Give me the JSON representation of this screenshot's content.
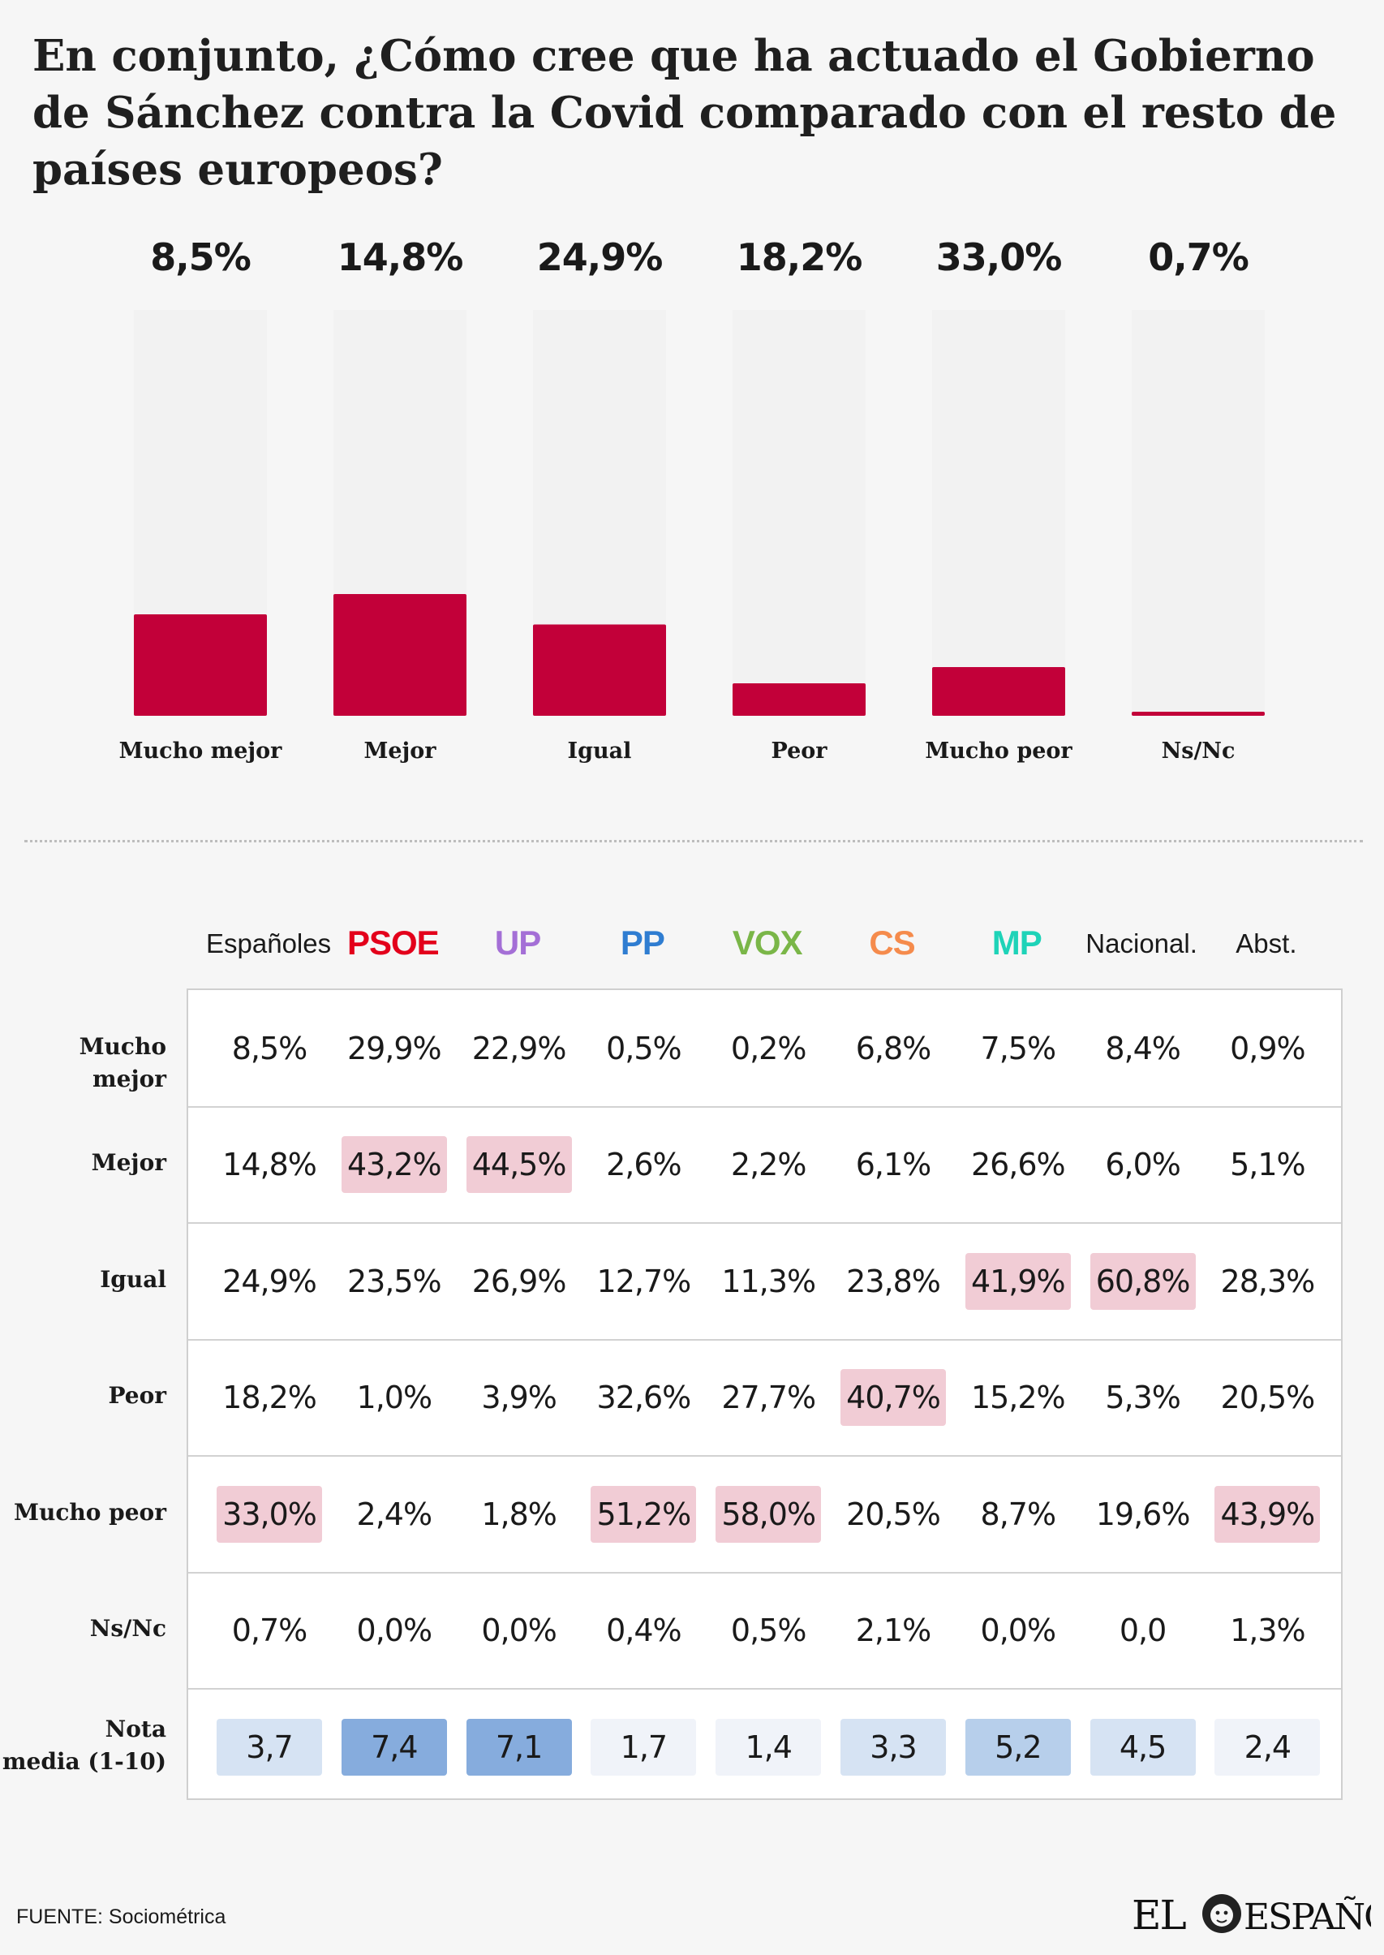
{
  "title": "En conjunto, ¿Cómo cree que ha actuado el Gobierno de Sánchez contra la Covid  comparado  con el resto de países europeos?",
  "chart_data": {
    "type": "bar",
    "categories": [
      "Mucho mejor",
      "Mejor",
      "Igual",
      "Peor",
      "Mucho peor",
      "Ns/Nc"
    ],
    "values": [
      8.5,
      14.8,
      24.9,
      18.2,
      33.0,
      0.7
    ],
    "value_labels": [
      "8,5%",
      "14,8%",
      "24,9%",
      "18,2%",
      "33,0%",
      "0,7%"
    ],
    "filled_fraction": [
      0.25,
      0.3,
      0.225,
      0.08,
      0.12,
      0.01
    ],
    "colors": {
      "bar": "#c20039",
      "track": "#f2f2f2"
    }
  },
  "table": {
    "columns": [
      {
        "label": "Españoles",
        "color": "#1a1a1a",
        "party": false
      },
      {
        "label": "PSOE",
        "color": "#e3001b",
        "party": true
      },
      {
        "label": "UP",
        "color": "#a46fd6",
        "party": true
      },
      {
        "label": "PP",
        "color": "#2f7dd1",
        "party": true
      },
      {
        "label": "VOX",
        "color": "#7ab648",
        "party": true
      },
      {
        "label": "CS",
        "color": "#f58b4c",
        "party": true
      },
      {
        "label": "MP",
        "color": "#1ed3b8",
        "party": true
      },
      {
        "label": "Nacional.",
        "color": "#1a1a1a",
        "party": false
      },
      {
        "label": "Abst.",
        "color": "#1a1a1a",
        "party": false
      }
    ],
    "rows": [
      {
        "label": "Mucho mejor",
        "cells": [
          "8,5%",
          "29,9%",
          "22,9%",
          "0,5%",
          "0,2%",
          "6,8%",
          "7,5%",
          "8,4%",
          "0,9%"
        ],
        "highlight": []
      },
      {
        "label": "Mejor",
        "cells": [
          "14,8%",
          "43,2%",
          "44,5%",
          "2,6%",
          "2,2%",
          "6,1%",
          "26,6%",
          "6,0%",
          "5,1%"
        ],
        "highlight": [
          1,
          2
        ]
      },
      {
        "label": "Igual",
        "cells": [
          "24,9%",
          "23,5%",
          "26,9%",
          "12,7%",
          "11,3%",
          "23,8%",
          "41,9%",
          "60,8%",
          "28,3%"
        ],
        "highlight": [
          6,
          7
        ]
      },
      {
        "label": "Peor",
        "cells": [
          "18,2%",
          "1,0%",
          "3,9%",
          "32,6%",
          "27,7%",
          "40,7%",
          "15,2%",
          "5,3%",
          "20,5%"
        ],
        "highlight": [
          5
        ]
      },
      {
        "label": "Mucho peor",
        "cells": [
          "33,0%",
          "2,4%",
          "1,8%",
          "51,2%",
          "58,0%",
          "20,5%",
          "8,7%",
          "19,6%",
          "43,9%"
        ],
        "highlight": [
          0,
          3,
          4,
          8
        ]
      },
      {
        "label": "Ns/Nc",
        "cells": [
          "0,7%",
          "0,0%",
          "0,0%",
          "0,4%",
          "0,5%",
          "2,1%",
          "0,0%",
          "0,0",
          "1,3%"
        ],
        "highlight": []
      }
    ],
    "mean_row": {
      "label_line1": "Nota",
      "label_line2": "media (1-10)",
      "cells": [
        "3,7",
        "7,4",
        "7,1",
        "1,7",
        "1,4",
        "3,3",
        "5,2",
        "4,5",
        "2,4"
      ],
      "shade_level": [
        1,
        3,
        3,
        0,
        0,
        1,
        2,
        1,
        0
      ]
    }
  },
  "source": "FUENTE: Sociométrica",
  "logo": {
    "left": "EL",
    "right": "ESPAÑOL"
  }
}
